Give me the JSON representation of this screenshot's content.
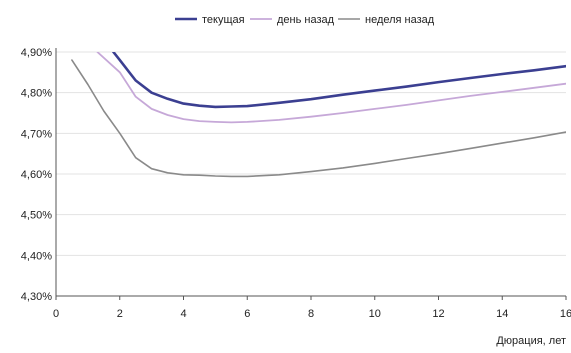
{
  "chart_data": {
    "type": "line",
    "title": "",
    "xlabel": "Дюрация, лет",
    "ylabel": "",
    "xlim": [
      0,
      16
    ],
    "ylim": [
      4.3,
      4.9
    ],
    "xticks": [
      0,
      2,
      4,
      6,
      8,
      10,
      12,
      14,
      16
    ],
    "xtick_labels": [
      "0",
      "2",
      "4",
      "6",
      "8",
      "10",
      "12",
      "14",
      "16"
    ],
    "yticks": [
      4.3,
      4.4,
      4.5,
      4.6,
      4.7,
      4.8,
      4.9
    ],
    "ytick_labels": [
      "4,30%",
      "4,40%",
      "4,50%",
      "4,60%",
      "4,70%",
      "4,80%",
      "4,90%"
    ],
    "grid": "horizontal",
    "legend_position": "top",
    "series": [
      {
        "name": "текущая",
        "color": "#3b3f91",
        "x": [
          1.8,
          2.0,
          2.5,
          3.0,
          3.5,
          4.0,
          4.5,
          5.0,
          5.5,
          6.0,
          7.0,
          8.0,
          9.0,
          10.0,
          11.0,
          12.0,
          13.0,
          14.0,
          15.0,
          16.0
        ],
        "y": [
          4.9,
          4.88,
          4.83,
          4.8,
          4.785,
          4.773,
          4.768,
          4.765,
          4.766,
          4.767,
          4.775,
          4.784,
          4.795,
          4.805,
          4.815,
          4.826,
          4.836,
          4.846,
          4.855,
          4.865
        ]
      },
      {
        "name": "день назад",
        "color": "#c6a8d8",
        "x": [
          1.3,
          2.0,
          2.5,
          3.0,
          3.5,
          4.0,
          4.5,
          5.0,
          5.5,
          6.0,
          7.0,
          8.0,
          9.0,
          10.0,
          11.0,
          12.0,
          13.0,
          14.0,
          15.0,
          16.0
        ],
        "y": [
          4.9,
          4.85,
          4.79,
          4.76,
          4.745,
          4.735,
          4.73,
          4.728,
          4.727,
          4.728,
          4.733,
          4.741,
          4.75,
          4.76,
          4.77,
          4.781,
          4.792,
          4.802,
          4.812,
          4.822
        ]
      },
      {
        "name": "неделя назад",
        "color": "#8a8a8a",
        "x": [
          0.5,
          1.0,
          1.5,
          2.0,
          2.5,
          3.0,
          3.5,
          4.0,
          4.5,
          5.0,
          5.5,
          6.0,
          7.0,
          8.0,
          9.0,
          10.0,
          11.0,
          12.0,
          13.0,
          14.0,
          15.0,
          16.0
        ],
        "y": [
          4.88,
          4.82,
          4.755,
          4.7,
          4.64,
          4.613,
          4.603,
          4.598,
          4.597,
          4.595,
          4.594,
          4.594,
          4.598,
          4.606,
          4.615,
          4.626,
          4.638,
          4.65,
          4.663,
          4.676,
          4.689,
          4.703
        ]
      }
    ]
  }
}
